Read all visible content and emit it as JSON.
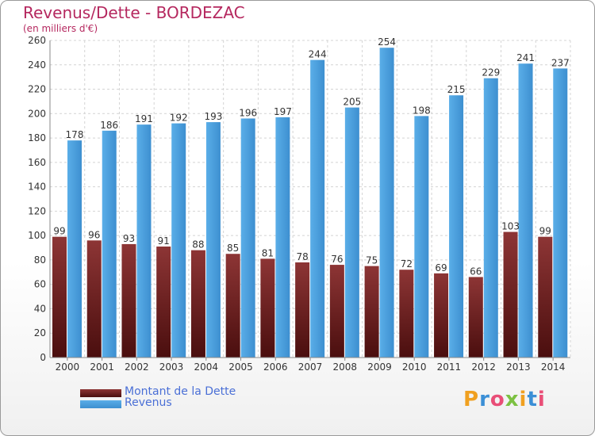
{
  "title": "Revenus/Dette - BORDEZAC",
  "subtitle": "(en milliers d'€)",
  "brand": "Proxiti",
  "colors": {
    "dette": "#7a2a2a",
    "revenus": "#4fa3e0",
    "title": "#b5285f",
    "legend_text": "#4a6fd6"
  },
  "chart_data": {
    "type": "bar",
    "categories": [
      "2000",
      "2001",
      "2002",
      "2003",
      "2004",
      "2005",
      "2006",
      "2007",
      "2008",
      "2009",
      "2010",
      "2011",
      "2012",
      "2013",
      "2014"
    ],
    "series": [
      {
        "name": "Montant de la Dette",
        "values": [
          99,
          96,
          93,
          91,
          88,
          85,
          81,
          78,
          76,
          75,
          72,
          69,
          66,
          103,
          99
        ]
      },
      {
        "name": "Revenus",
        "values": [
          178,
          186,
          191,
          192,
          193,
          196,
          197,
          244,
          205,
          254,
          198,
          215,
          229,
          241,
          237
        ]
      }
    ],
    "ylim": [
      0,
      260
    ],
    "yticks": [
      0,
      20,
      40,
      60,
      80,
      100,
      120,
      140,
      160,
      180,
      200,
      220,
      240,
      260
    ],
    "grid": true,
    "legend": "bottom-left"
  }
}
